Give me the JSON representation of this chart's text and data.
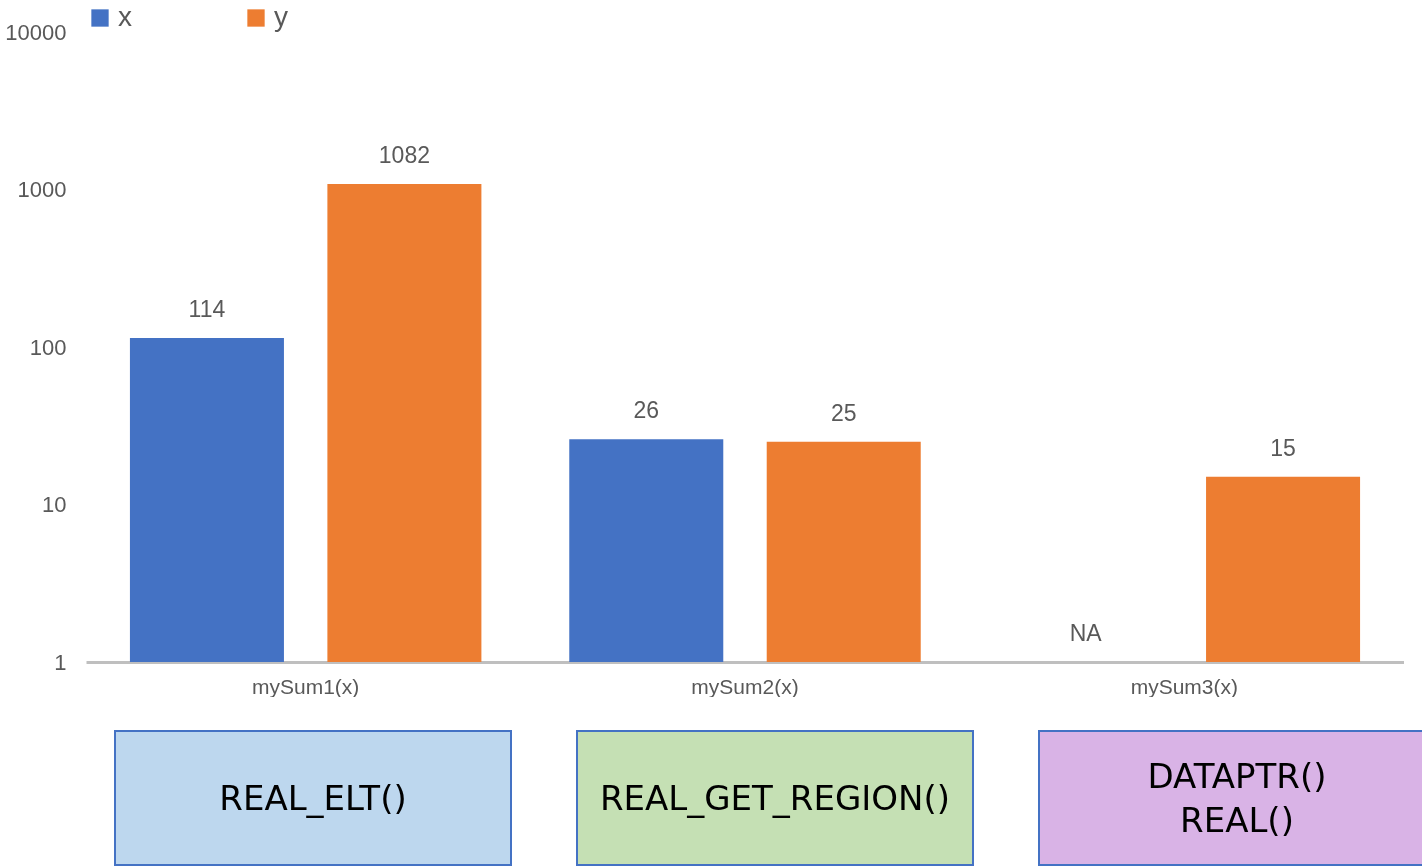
{
  "chart_data": {
    "type": "bar",
    "categories": [
      "mySum1(x)",
      "mySum2(x)",
      "mySum3(x)"
    ],
    "series": [
      {
        "name": "x",
        "color": "#4472c4",
        "values": [
          114,
          26,
          null
        ],
        "value_labels": [
          "114",
          "26",
          "NA"
        ]
      },
      {
        "name": "y",
        "color": "#ed7d31",
        "values": [
          1082,
          25,
          15
        ],
        "value_labels": [
          "1082",
          "25",
          "15"
        ]
      }
    ],
    "log": "y",
    "ylim": [
      1,
      10000
    ],
    "yticks": [
      1,
      10,
      100,
      1000,
      10000
    ],
    "grid": false,
    "legend": "top",
    "annotations": [
      "REAL_ELT()",
      "REAL_GET_REGION()",
      "DATAPTR()\nREAL()"
    ]
  }
}
